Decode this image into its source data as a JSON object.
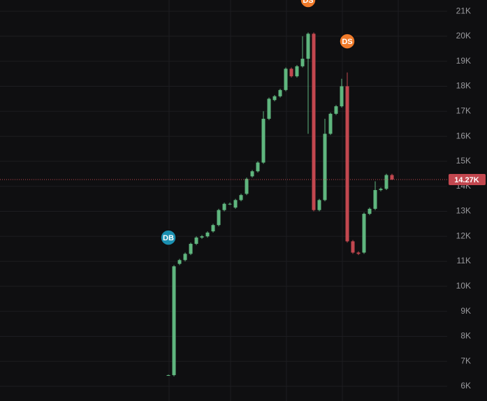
{
  "chart_data": {
    "type": "candlestick",
    "open": [
      6450,
      6450,
      10900,
      11050,
      11300,
      11700,
      11950,
      12000,
      12200,
      12450,
      13050,
      13300,
      13150,
      13450,
      13700,
      14400,
      14600,
      14950,
      16700,
      17450,
      17600,
      17850,
      18700,
      18400,
      18800,
      19100,
      20100,
      13050,
      13450,
      16100,
      16900,
      17200,
      18000,
      11800,
      11350,
      11350,
      12900,
      13100,
      13850,
      13900,
      14450
    ],
    "high": [
      6470,
      10850,
      11100,
      11350,
      11750,
      12000,
      12050,
      12200,
      12500,
      13100,
      13350,
      13350,
      13500,
      13700,
      14350,
      14650,
      15000,
      17000,
      17550,
      17650,
      17900,
      18750,
      18750,
      18850,
      20000,
      20150,
      20150,
      13500,
      16700,
      16950,
      17250,
      18300,
      18550,
      11850,
      11400,
      12950,
      13150,
      14200,
      13950,
      14500,
      14500
    ],
    "low": [
      6430,
      6400,
      10850,
      11000,
      11250,
      11650,
      11900,
      11950,
      12150,
      12400,
      13000,
      13250,
      13100,
      13400,
      13650,
      14350,
      14550,
      14900,
      16650,
      17400,
      17550,
      17800,
      18350,
      18350,
      18750,
      16100,
      13000,
      13000,
      13400,
      16050,
      16850,
      17150,
      11750,
      11300,
      11250,
      11300,
      12850,
      13050,
      13800,
      13850,
      14250
    ],
    "close": [
      6450,
      10800,
      11050,
      11300,
      11700,
      11950,
      12000,
      12150,
      12450,
      13050,
      13300,
      13300,
      13450,
      13650,
      14300,
      14600,
      14950,
      16700,
      17500,
      17600,
      17850,
      18700,
      18400,
      18800,
      19100,
      20100,
      13050,
      13450,
      16100,
      16900,
      17200,
      18000,
      11800,
      11350,
      11300,
      12900,
      13100,
      13850,
      13900,
      14450,
      14270
    ],
    "up_color": "#5fb67e",
    "down_color": "#c2474f",
    "ylim": [
      5415,
      21450
    ],
    "yticks": [
      {
        "value": 21000,
        "label": "21K"
      },
      {
        "value": 20000,
        "label": "20K"
      },
      {
        "value": 19000,
        "label": "19K"
      },
      {
        "value": 18000,
        "label": "18K"
      },
      {
        "value": 17000,
        "label": "17K"
      },
      {
        "value": 16000,
        "label": "16K"
      },
      {
        "value": 15000,
        "label": "15K"
      },
      {
        "value": 14000,
        "label": "14K"
      },
      {
        "value": 13000,
        "label": "13K"
      },
      {
        "value": 12000,
        "label": "12K"
      },
      {
        "value": 11000,
        "label": "11K"
      },
      {
        "value": 10000,
        "label": "10K"
      },
      {
        "value": 9000,
        "label": "9K"
      },
      {
        "value": 8000,
        "label": "8K"
      },
      {
        "value": 7000,
        "label": "7K"
      },
      {
        "value": 6000,
        "label": "6K"
      }
    ],
    "last_price": {
      "value": 14270,
      "label": "14.27K"
    },
    "markers": [
      {
        "index": 0,
        "value": 11950,
        "label": "DB",
        "color": "#1a8fb0"
      },
      {
        "index": 25,
        "value": 21450,
        "label": "DS",
        "color": "#ef7a2a"
      },
      {
        "index": 32,
        "value": 19800,
        "label": "DS",
        "color": "#ef7a2a"
      }
    ],
    "grid": true
  }
}
